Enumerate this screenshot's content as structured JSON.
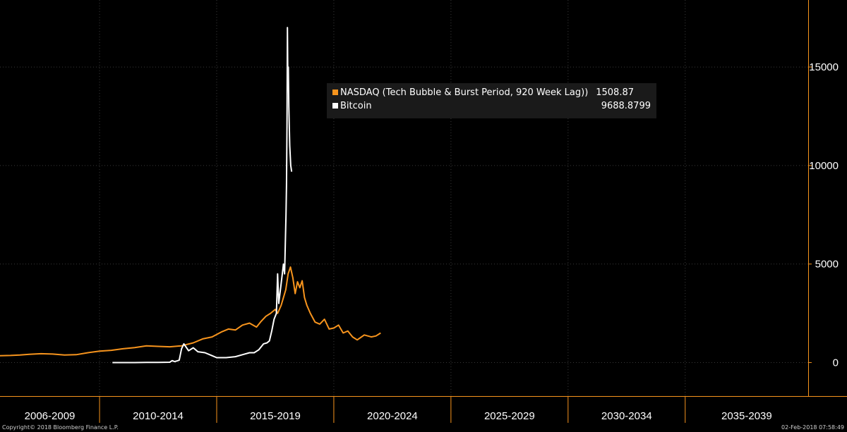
{
  "chart_data": {
    "type": "line",
    "x_unit": "year",
    "xlim": [
      2005.75,
      2040.25
    ],
    "ylim": [
      -1700,
      18400
    ],
    "y_ticks": [
      0,
      5000,
      10000,
      15000
    ],
    "y_tick_labels": [
      "0",
      "5000",
      "10000",
      "15000"
    ],
    "x_period_labels": [
      "2006-2009",
      "2010-2014",
      "2015-2019",
      "2020-2024",
      "2025-2029",
      "2030-2034",
      "2035-2039"
    ],
    "x_period_bounds": [
      [
        2005.75,
        2010.0
      ],
      [
        2010.0,
        2015.0
      ],
      [
        2015.0,
        2020.0
      ],
      [
        2020.0,
        2025.0
      ],
      [
        2025.0,
        2030.0
      ],
      [
        2030.0,
        2035.0
      ],
      [
        2035.0,
        2040.25
      ]
    ],
    "grid": true,
    "legend_position": "top-center",
    "series": [
      {
        "name": "NASDAQ (Tech Bubble & Burst Period, 920 Week Lag))",
        "last_value": "1508.87",
        "color": "#f7941d",
        "x": [
          2005.75,
          2006.2,
          2006.6,
          2007.0,
          2007.5,
          2008.0,
          2008.5,
          2009.0,
          2009.5,
          2010.0,
          2010.5,
          2011.0,
          2011.5,
          2012.0,
          2012.5,
          2013.0,
          2013.5,
          2014.0,
          2014.4,
          2014.8,
          2015.2,
          2015.5,
          2015.8,
          2016.1,
          2016.4,
          2016.7,
          2016.9,
          2017.1,
          2017.3,
          2017.5,
          2017.6,
          2017.75,
          2017.85,
          2017.95,
          2018.05,
          2018.15,
          2018.25,
          2018.35,
          2018.45,
          2018.55,
          2018.65,
          2018.75,
          2018.85,
          2019.0,
          2019.2,
          2019.4,
          2019.6,
          2019.8,
          2020.0,
          2020.2,
          2020.4,
          2020.6,
          2020.8,
          2021.0,
          2021.3,
          2021.6,
          2021.8,
          2022.0
        ],
        "y": [
          350,
          360,
          380,
          420,
          450,
          430,
          380,
          400,
          500,
          580,
          620,
          700,
          760,
          850,
          820,
          800,
          850,
          1000,
          1200,
          1300,
          1550,
          1700,
          1650,
          1900,
          2000,
          1800,
          2100,
          2350,
          2500,
          2700,
          2500,
          2900,
          3300,
          3700,
          4500,
          4850,
          4300,
          3500,
          4100,
          3800,
          4150,
          3300,
          2900,
          2500,
          2050,
          1950,
          2200,
          1700,
          1750,
          1900,
          1500,
          1600,
          1300,
          1150,
          1400,
          1300,
          1350,
          1500
        ]
      },
      {
        "name": "Bitcoin",
        "last_value": "9688.8799",
        "color": "#ffffff",
        "x": [
          2010.55,
          2011.0,
          2011.5,
          2012.0,
          2012.5,
          2013.0,
          2013.1,
          2013.2,
          2013.3,
          2013.4,
          2013.5,
          2013.6,
          2013.8,
          2014.0,
          2014.2,
          2014.5,
          2014.8,
          2015.0,
          2015.4,
          2015.8,
          2016.1,
          2016.4,
          2016.6,
          2016.8,
          2017.0,
          2017.15,
          2017.25,
          2017.35,
          2017.45,
          2017.55,
          2017.6,
          2017.65,
          2017.75,
          2017.85,
          2017.9,
          2017.93,
          2017.96,
          2017.98,
          2018.0,
          2018.02,
          2018.04,
          2018.06,
          2018.08,
          2018.12,
          2018.16,
          2018.2
        ],
        "y": [
          0,
          0,
          0,
          5,
          10,
          15,
          100,
          50,
          80,
          120,
          700,
          950,
          600,
          750,
          550,
          500,
          350,
          250,
          250,
          300,
          400,
          500,
          500,
          650,
          950,
          1000,
          1100,
          1600,
          2200,
          2500,
          4500,
          3000,
          4000,
          5000,
          4500,
          6000,
          7500,
          9000,
          12000,
          17000,
          14000,
          15000,
          13000,
          11000,
          10000,
          9688.8799
        ]
      }
    ]
  },
  "footer": {
    "copyright": "Copyright© 2018 Bloomberg Finance L.P.",
    "timestamp": "02-Feb-2018 07:58:49"
  }
}
